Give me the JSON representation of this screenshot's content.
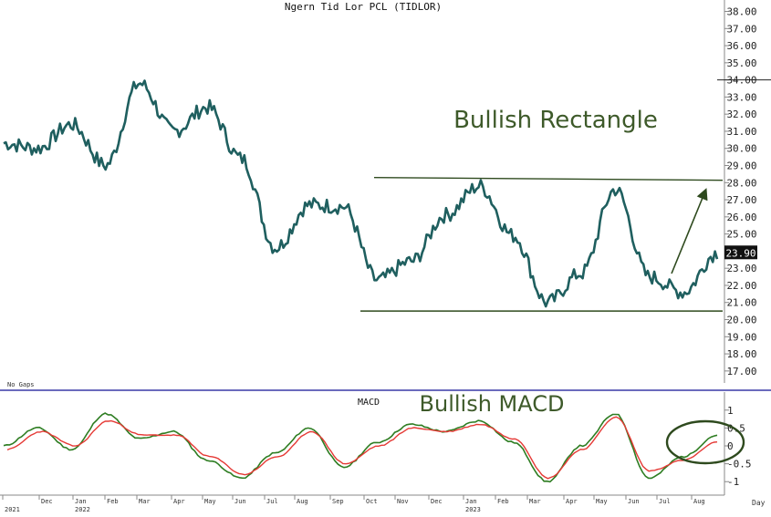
{
  "chart_data": [
    {
      "type": "line",
      "title": "Ngern Tid Lor PCL (TIDLOR)",
      "annotation": "Bullish Rectangle",
      "gap_note": "No Gaps",
      "last_value_label": "23.90",
      "ylim": [
        16.3,
        38.4
      ],
      "yticks": [
        "38.00",
        "37.00",
        "36.00",
        "35.00",
        "34.00",
        "33.00",
        "32.00",
        "31.00",
        "30.00",
        "29.00",
        "28.00",
        "27.00",
        "26.00",
        "25.00",
        "24.00",
        "23.00",
        "22.00",
        "21.00",
        "20.00",
        "19.00",
        "18.00",
        "17.00"
      ],
      "grid": false,
      "colors": {
        "price": "#1f5f5f",
        "annotation": "#3e5a2a",
        "lines": "#2e4a1e"
      },
      "series": [
        {
          "x": [
            "2021-11",
            "2021-12",
            "2022-01",
            "2022-02",
            "2022-03",
            "2022-04",
            "2022-05",
            "2022-06",
            "2022-07",
            "2022-08",
            "2022-09",
            "2022-10",
            "2022-11",
            "2022-12",
            "2023-01",
            "2023-02",
            "2023-03",
            "2023-04",
            "2023-05",
            "2023-06",
            "2023-07",
            "2023-08"
          ],
          "values": [
            30.3,
            30.0,
            31.4,
            29.0,
            33.8,
            31.0,
            32.4,
            29.4,
            24.2,
            26.7,
            26.6,
            22.3,
            23.4,
            26.1,
            27.8,
            24.9,
            21.0,
            22.7,
            27.6,
            22.5,
            21.6,
            23.9
          ]
        }
      ],
      "resistance_line": 28.3,
      "support_line": 20.5
    },
    {
      "type": "line",
      "title": "MACD",
      "annotation": "Bullish MACD",
      "ylim": [
        -1.3,
        1.3
      ],
      "yticks": [
        "1",
        "0.5",
        "0",
        "-0.5",
        "-1"
      ],
      "colors": {
        "macd": "#2e7d22",
        "signal": "#e53935"
      },
      "x_labels": [
        "2021",
        "Dec",
        "Jan",
        "2022",
        "Feb",
        "Mar",
        "Apr",
        "May",
        "Jun",
        "Jul",
        "Aug",
        "Sep",
        "Oct",
        "Nov",
        "Dec",
        "Jan",
        "2023",
        "Feb",
        "Mar",
        "Apr",
        "May",
        "Jun",
        "Jul",
        "Aug"
      ],
      "x_unit_label": "Day",
      "series": [
        {
          "values": [
            0.0,
            0.5,
            -0.1,
            0.9,
            0.2,
            0.4,
            -0.4,
            -0.9,
            -0.2,
            0.5,
            -0.6,
            0.1,
            0.6,
            0.4,
            0.7,
            0.1,
            -1.0,
            0.0,
            0.9,
            -0.9,
            -0.3,
            0.3
          ]
        },
        {
          "values": [
            -0.1,
            0.4,
            0.0,
            0.7,
            0.3,
            0.3,
            -0.3,
            -0.8,
            -0.3,
            0.4,
            -0.5,
            0.0,
            0.5,
            0.4,
            0.6,
            0.2,
            -0.9,
            -0.1,
            0.8,
            -0.7,
            -0.4,
            0.1
          ]
        }
      ]
    }
  ]
}
